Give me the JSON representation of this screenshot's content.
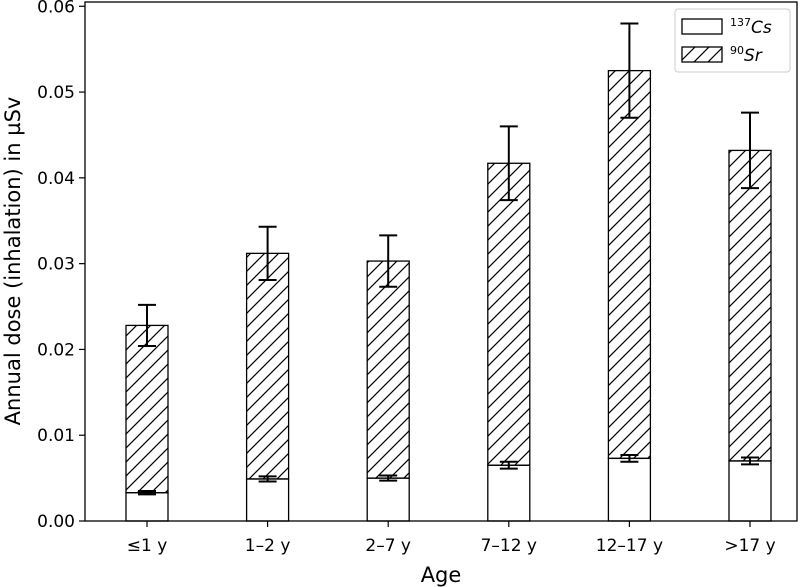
{
  "chart_data": {
    "type": "bar",
    "stacked": true,
    "categories": [
      "≤1 y",
      "1–2 y",
      "2–7 y",
      "7–12 y",
      "12–17 y",
      ">17 y"
    ],
    "series": [
      {
        "name": "137Cs",
        "name_parts": {
          "sup": "137",
          "text": "Cs"
        },
        "fill": "none",
        "values": [
          0.0033,
          0.0049,
          0.005,
          0.0065,
          0.0073,
          0.007
        ],
        "errors": [
          0.0002,
          0.0003,
          0.0003,
          0.0004,
          0.0004,
          0.0004
        ]
      },
      {
        "name": "90Sr",
        "name_parts": {
          "sup": "90",
          "text": "Sr"
        },
        "fill": "hatch",
        "values": [
          0.0195,
          0.0263,
          0.0253,
          0.0352,
          0.0452,
          0.0362
        ],
        "totals": [
          0.0228,
          0.0312,
          0.0303,
          0.0417,
          0.0525,
          0.0432
        ],
        "errors": [
          0.0024,
          0.0031,
          0.003,
          0.0043,
          0.0055,
          0.0044
        ]
      }
    ],
    "title": "",
    "xlabel": "Age",
    "ylabel": "Annual dose (inhalation) in µSv",
    "ylim": [
      0,
      0.0605
    ],
    "yticks": [
      "0.00",
      "0.01",
      "0.02",
      "0.03",
      "0.04",
      "0.05",
      "0.06"
    ],
    "ytick_values": [
      0,
      0.01,
      0.02,
      0.03,
      0.04,
      0.05,
      0.06
    ],
    "grid": false,
    "legend": "top-right",
    "colors": {
      "bar_edge": "#000000",
      "background": "#ffffff"
    }
  }
}
